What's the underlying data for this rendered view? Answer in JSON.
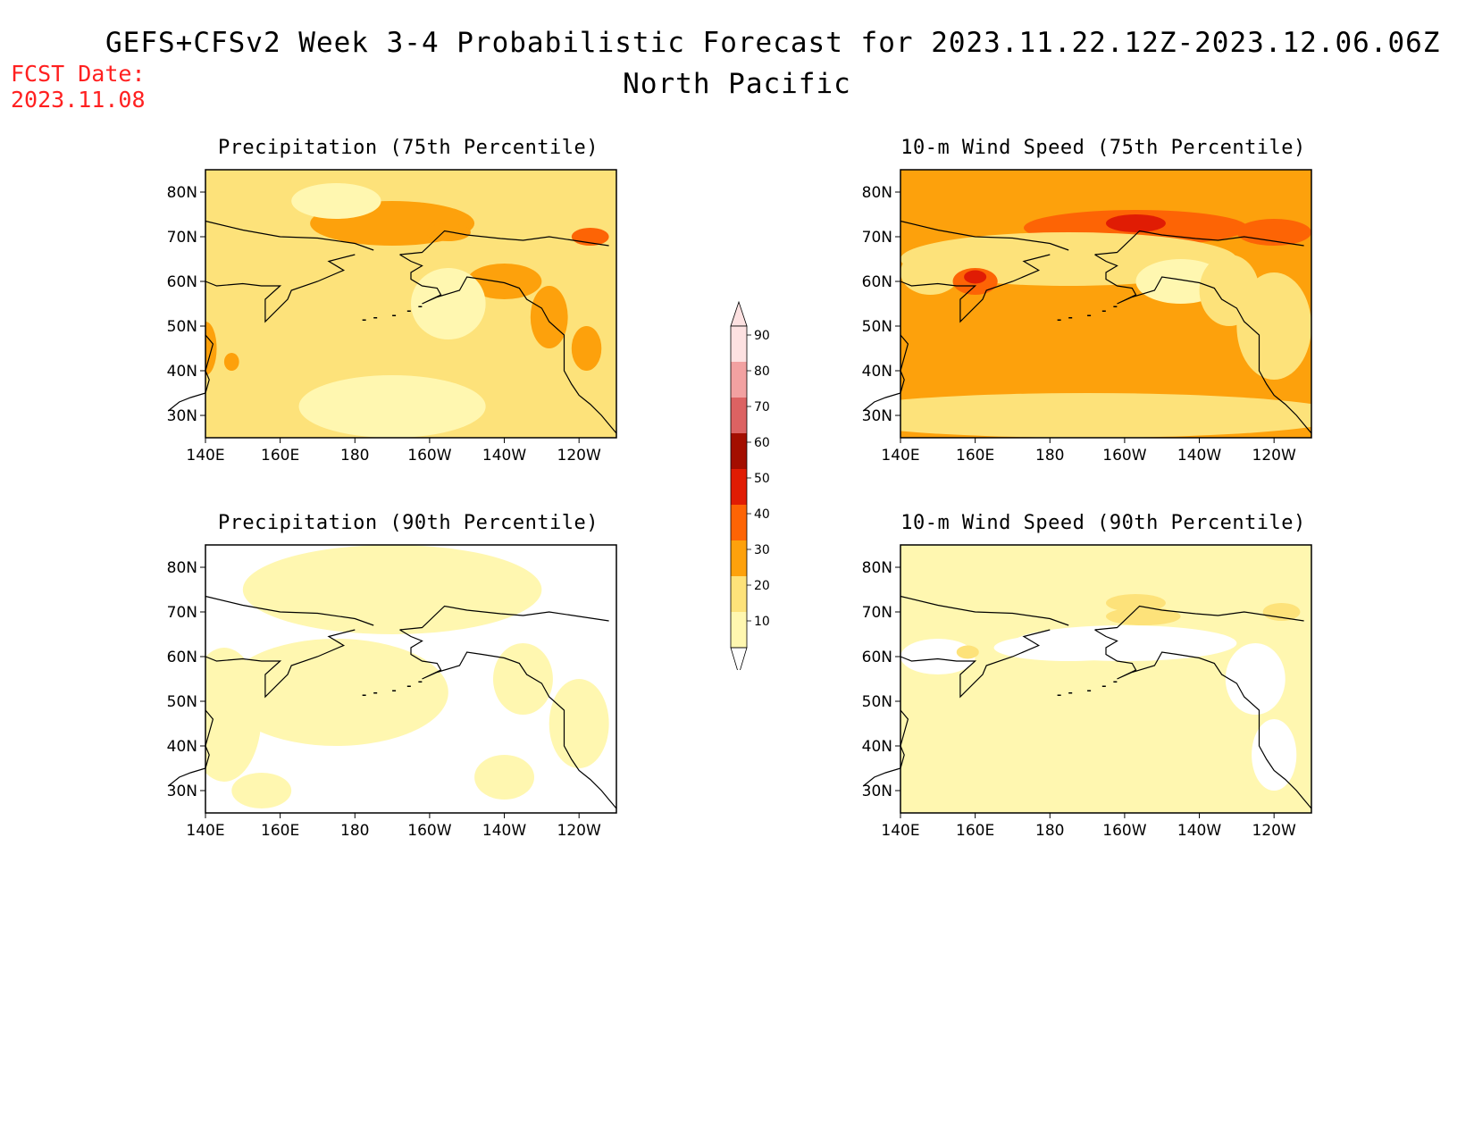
{
  "figure": {
    "title": "GEFS+CFSv2 Week 3-4 Probabilistic Forecast for 2023.11.22.12Z-2023.12.06.06Z",
    "region": "North Pacific",
    "fcst_date_label": "FCST Date:",
    "fcst_date": "2023.11.08"
  },
  "panels": [
    {
      "title": "Precipitation (75th Percentile)",
      "base": 20,
      "patches": [
        [
          30,
          [
            -170,
            73
          ],
          [
            22,
            5
          ]
        ],
        [
          10,
          [
            -170,
            32
          ],
          [
            25,
            7
          ]
        ],
        [
          10,
          [
            -185,
            78
          ],
          [
            12,
            4
          ]
        ],
        [
          30,
          [
            -140,
            60
          ],
          [
            10,
            4
          ]
        ],
        [
          30,
          [
            -128,
            52
          ],
          [
            5,
            7
          ]
        ],
        [
          30,
          [
            -118,
            45
          ],
          [
            4,
            5
          ]
        ],
        [
          40,
          [
            -117,
            70
          ],
          [
            5,
            2
          ]
        ],
        [
          30,
          [
            -155,
            71
          ],
          [
            6,
            2
          ]
        ],
        [
          30,
          [
            140,
            45
          ],
          [
            3,
            6
          ]
        ],
        [
          30,
          [
            147,
            42
          ],
          [
            2,
            2
          ]
        ],
        [
          10,
          [
            205,
            55
          ],
          [
            10,
            8
          ]
        ]
      ]
    },
    {
      "title": "10-m Wind Speed (75th Percentile)",
      "base": 30,
      "patches": [
        [
          40,
          [
            -157,
            72
          ],
          [
            30,
            4
          ]
        ],
        [
          50,
          [
            -157,
            73
          ],
          [
            8,
            2
          ]
        ],
        [
          20,
          [
            -175,
            65
          ],
          [
            45,
            6
          ]
        ],
        [
          20,
          [
            148,
            62
          ],
          [
            8,
            5
          ]
        ],
        [
          10,
          [
            -145,
            60
          ],
          [
            12,
            5
          ]
        ],
        [
          20,
          [
            -132,
            58
          ],
          [
            8,
            8
          ]
        ],
        [
          20,
          [
            -120,
            50
          ],
          [
            10,
            12
          ]
        ],
        [
          20,
          [
            -170,
            30
          ],
          [
            70,
            5
          ]
        ],
        [
          40,
          [
            160,
            60
          ],
          [
            6,
            3
          ]
        ],
        [
          50,
          [
            160,
            61
          ],
          [
            3,
            1.5
          ]
        ],
        [
          40,
          [
            -120,
            71
          ],
          [
            10,
            3
          ]
        ]
      ]
    },
    {
      "title": "Precipitation (90th Percentile)",
      "base": 0,
      "patches": [
        [
          10,
          [
            -170,
            75
          ],
          [
            40,
            10
          ]
        ],
        [
          10,
          [
            -185,
            52
          ],
          [
            30,
            12
          ]
        ],
        [
          10,
          [
            145,
            47
          ],
          [
            10,
            15
          ]
        ],
        [
          10,
          [
            -135,
            55
          ],
          [
            8,
            8
          ]
        ],
        [
          10,
          [
            -120,
            45
          ],
          [
            8,
            10
          ]
        ],
        [
          10,
          [
            155,
            30
          ],
          [
            8,
            4
          ]
        ],
        [
          10,
          [
            -140,
            33
          ],
          [
            8,
            5
          ]
        ]
      ]
    },
    {
      "title": "10-m Wind Speed (90th Percentile)",
      "base": 10,
      "patches": [
        [
          0,
          [
            -160,
            63
          ],
          [
            30,
            4
          ]
        ],
        [
          0,
          [
            -125,
            55
          ],
          [
            8,
            8
          ]
        ],
        [
          0,
          [
            -175,
            62
          ],
          [
            20,
            3
          ]
        ],
        [
          0,
          [
            150,
            60
          ],
          [
            10,
            4
          ]
        ],
        [
          20,
          [
            -157,
            72
          ],
          [
            8,
            2
          ]
        ],
        [
          20,
          [
            -118,
            70
          ],
          [
            5,
            2
          ]
        ],
        [
          20,
          [
            158,
            61
          ],
          [
            3,
            1.5
          ]
        ],
        [
          20,
          [
            -155,
            69
          ],
          [
            10,
            2
          ]
        ],
        [
          0,
          [
            -120,
            38
          ],
          [
            6,
            8
          ]
        ]
      ]
    }
  ],
  "axis": {
    "lon_labels": [
      "140E",
      "160E",
      "180",
      "160W",
      "140W",
      "120W"
    ],
    "lat_labels": [
      "80N",
      "70N",
      "60N",
      "50N",
      "40N",
      "30N"
    ]
  },
  "colorbar": {
    "labels": [
      "90",
      "80",
      "70",
      "60",
      "50",
      "40",
      "30",
      "20",
      "10"
    ],
    "levels": [
      10,
      20,
      30,
      40,
      50,
      60,
      70,
      80,
      90
    ],
    "colors": {
      "0": "#ffffff",
      "10": "#fff7b0",
      "20": "#fde27a",
      "30": "#fda10c",
      "40": "#fd6405",
      "50": "#e01c04",
      "60": "#a30e00",
      "70": "#dc6262",
      "80": "#f2a1a1",
      "90": "#fde1e1"
    }
  }
}
